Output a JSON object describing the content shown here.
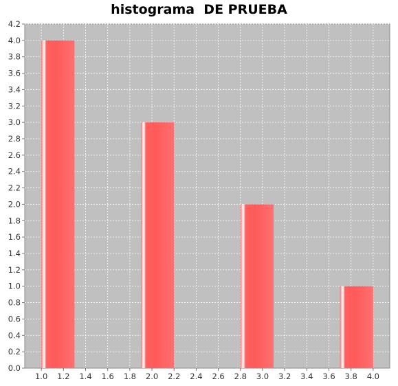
{
  "chart_data": {
    "type": "bar",
    "title": "histograma  DE PRUEBA",
    "xlabel": "",
    "ylabel": "",
    "bars": [
      {
        "x_start": 1.0,
        "x_end": 1.3,
        "value": 4.0
      },
      {
        "x_start": 1.9,
        "x_end": 2.2,
        "value": 3.0
      },
      {
        "x_start": 2.8,
        "x_end": 3.1,
        "value": 2.0
      },
      {
        "x_start": 3.7,
        "x_end": 4.0,
        "value": 1.0
      }
    ],
    "xlim": [
      0.85,
      4.15
    ],
    "ylim": [
      0.0,
      4.2
    ],
    "x_ticks": [
      "1.0",
      "1.2",
      "1.4",
      "1.6",
      "1.8",
      "2.0",
      "2.2",
      "2.4",
      "2.6",
      "2.8",
      "3.0",
      "3.2",
      "3.4",
      "3.6",
      "3.8",
      "4.0"
    ],
    "y_ticks": [
      "0.0",
      "0.2",
      "0.4",
      "0.6",
      "0.8",
      "1.0",
      "1.2",
      "1.4",
      "1.6",
      "1.8",
      "2.0",
      "2.2",
      "2.4",
      "2.6",
      "2.8",
      "3.0",
      "3.2",
      "3.4",
      "3.6",
      "3.8",
      "4.0",
      "4.2"
    ],
    "grid": true,
    "legend": "none",
    "colors": {
      "bar": "#ff5f5f",
      "bar_highlight": "#ffffff",
      "plot_background": "#c0c0c0",
      "grid": "#ffffff"
    }
  }
}
